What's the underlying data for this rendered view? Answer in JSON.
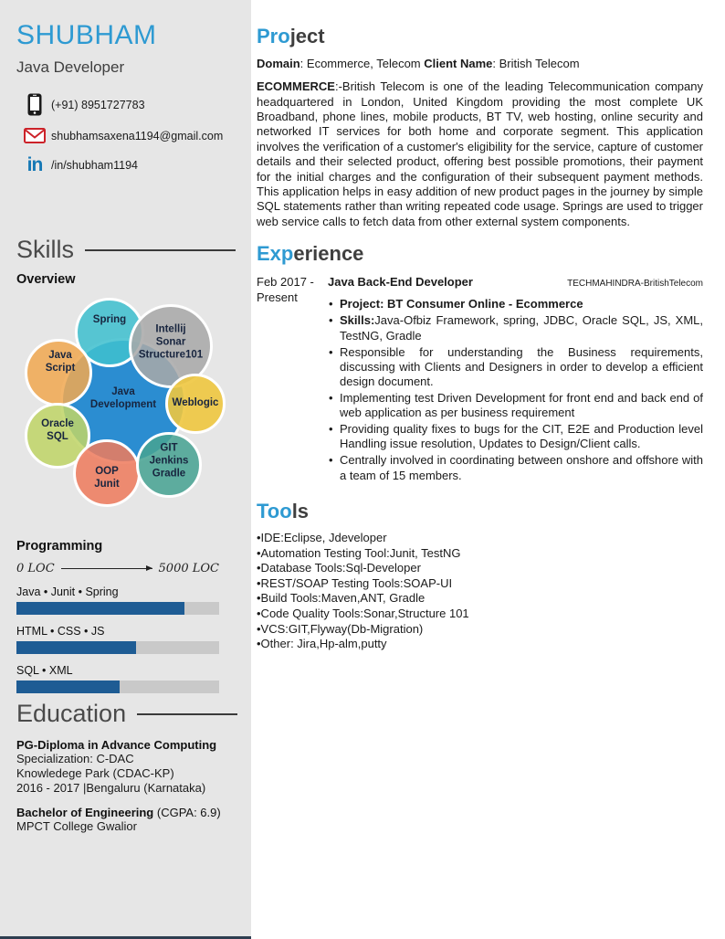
{
  "colors": {
    "accent_blue": "#2e9ad2",
    "sidebar_bg": "#e6e6e6",
    "bar_fill": "#1e5c94",
    "bar_track": "#c9c9c9",
    "bottom_bar": "#2d3e50"
  },
  "sidebar": {
    "name": "SHUBHAM",
    "title": "Java Developer",
    "contact": [
      {
        "icon": "phone-icon",
        "text": "(+91) 8951727783"
      },
      {
        "icon": "email-icon",
        "text": "shubhamsaxena1194@gmail.com"
      },
      {
        "icon": "linkedin-icon",
        "glyph": "in",
        "text": "/in/shubham1194"
      }
    ],
    "skills": {
      "heading": "Skills",
      "subheading": "Overview",
      "bubbles": [
        {
          "id": "java-development",
          "label": "Java\nDevelopment",
          "color": "#1d86cfee"
        },
        {
          "id": "spring",
          "label": "Spring",
          "color": "#3fc0cfdd"
        },
        {
          "id": "intellij-sonar-structure101",
          "label": "Intellij\nSonar\nStructure101",
          "color": "#a9a9a9dd"
        },
        {
          "id": "javascript",
          "label": "Java\nScript",
          "color": "#f0a952dd"
        },
        {
          "id": "weblogic",
          "label": "Weblogic",
          "color": "#eec63fe6"
        },
        {
          "id": "oracle-sql",
          "label": "Oracle\nSQL",
          "color": "#bfd468dd"
        },
        {
          "id": "oop-junit",
          "label": "OOP\nJunit",
          "color": "#ee7b5edd"
        },
        {
          "id": "git-jenkins-gradle",
          "label": "GIT\nJenkins\nGradle",
          "color": "#48a392dd"
        }
      ]
    },
    "programming": {
      "heading": "Programming",
      "scale_left": "0 LOC",
      "scale_right": "5000 LOC",
      "bars": [
        {
          "label": "Java • Junit • Spring",
          "percent": 83
        },
        {
          "label": "HTML • CSS • JS",
          "percent": 59
        },
        {
          "label": "SQL • XML",
          "percent": 51
        }
      ]
    },
    "education": {
      "heading": "Education",
      "entries": [
        {
          "title": "PG-Diploma in Advance Computing",
          "title_suffix": "",
          "lines": "Specialization: C-DAC\nKnowledege Park (CDAC-KP)\n2016 - 2017 |Bengaluru (Karnataka)"
        },
        {
          "title": "Bachelor of Engineering",
          "title_suffix": "  (CGPA: 6.9)",
          "lines": "MPCT College Gwalior"
        }
      ]
    }
  },
  "main": {
    "project": {
      "heading_accent": "Pro",
      "heading_rest": "ject",
      "domain_label": "Domain",
      "domain_value": ": Ecommerce, Telecom ",
      "client_label": "Client Name",
      "client_value": ": British Telecom",
      "body_label": "ECOMMERCE",
      "body_text": ":-British Telecom is one of the leading Telecommunication company headquartered in London, United Kingdom providing the most complete UK Broadband, phone lines, mobile products, BT TV, web hosting, online security and networked IT services for both home and corporate segment. This application involves the verification of a customer's eligibility for the service, capture of customer details and their selected product, offering best possible promotions, their payment for the initial charges and the configuration of their subsequent payment methods. This application helps in easy addition of new product pages in the journey by simple SQL statements rather than writing repeated code usage. Springs are used to trigger web service calls to fetch data from other external system components."
    },
    "experience": {
      "heading_accent": "Exp",
      "heading_rest": "erience",
      "date": "Feb 2017 -\nPresent",
      "role": "Java Back-End Developer",
      "company": "TECHMAHINDRA-BritishTelecom",
      "bullets": [
        {
          "b": "Project: BT Consumer Online - Ecommerce",
          "t": ""
        },
        {
          "b": "Skills:",
          "t": "Java-Ofbiz Framework, spring, JDBC, Oracle SQL, JS, XML, TestNG, Gradle"
        },
        {
          "b": "",
          "t": "Responsible for understanding the Business requirements, discussing with Clients and Designers in order to develop a efficient design document."
        },
        {
          "b": "",
          "t": "Implementing test Driven Development for front end and back end of web application as per business requirement"
        },
        {
          "b": "",
          "t": "Providing quality fixes to bugs for the CIT, E2E and Production level Handling issue resolution, Updates to Design/Client calls."
        },
        {
          "b": "",
          "t": "Centrally involved in coordinating between onshore and offshore with a team of 15 members."
        }
      ]
    },
    "tools": {
      "heading_accent": "Too",
      "heading_rest": "ls",
      "items": [
        "•IDE:Eclipse, Jdeveloper",
        "•Automation Testing Tool:Junit, TestNG",
        "•Database Tools:Sql-Developer",
        "•REST/SOAP Testing Tools:SOAP-UI",
        "•Build Tools:Maven,ANT, Gradle",
        "•Code Quality Tools:Sonar,Structure 101",
        "•VCS:GIT,Flyway(Db-Migration)",
        "•Other: Jira,Hp-alm,putty"
      ]
    }
  }
}
